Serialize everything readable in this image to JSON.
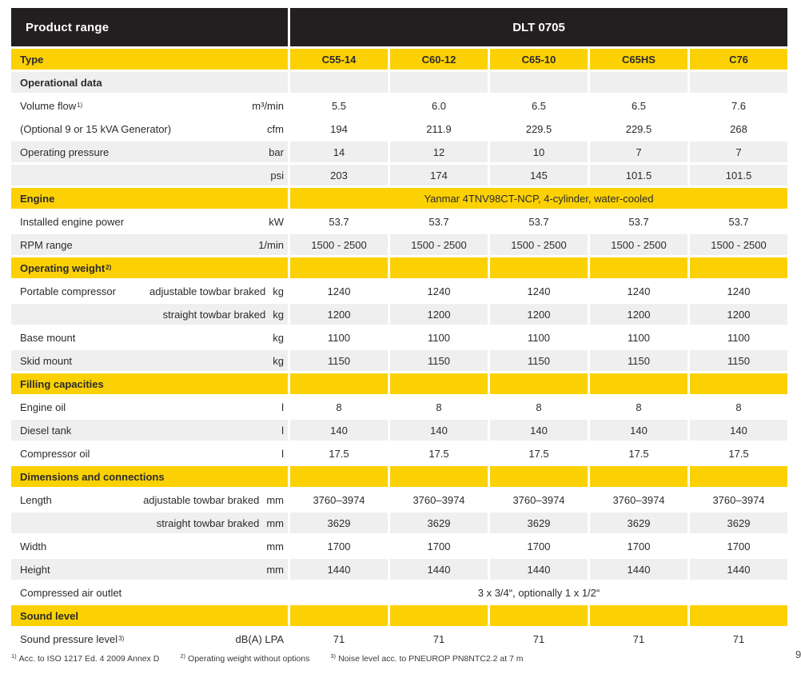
{
  "header": {
    "left": "Product range",
    "right": "DLT 0705"
  },
  "rows": [
    {
      "bg": "yellow",
      "bold": true,
      "label": "Type",
      "values": [
        "C55-14",
        "C60-12",
        "C65-10",
        "C65HS",
        "C76"
      ],
      "values_bold": true
    },
    {
      "bg": "gray",
      "bold": true,
      "label": "Operational data"
    },
    {
      "bg": "white",
      "label": "Volume flow",
      "sup": "1)",
      "unit": "m³/min",
      "values": [
        "5.5",
        "6.0",
        "6.5",
        "6.5",
        "7.6"
      ]
    },
    {
      "bg": "white",
      "label": "(Optional 9 or 15 kVA Generator)",
      "unit": "cfm",
      "values": [
        "194",
        "211.9",
        "229.5",
        "229.5",
        "268"
      ]
    },
    {
      "bg": "gray",
      "label": "Operating pressure",
      "unit": "bar",
      "values": [
        "14",
        "12",
        "10",
        "7",
        "7"
      ]
    },
    {
      "bg": "gray",
      "label": "",
      "unit": "psi",
      "values": [
        "203",
        "174",
        "145",
        "101.5",
        "101.5"
      ]
    },
    {
      "bg": "yellow",
      "bold": true,
      "label": "Engine",
      "span_value": "Yanmar 4TNV98CT-NCP, 4-cylinder, water-cooled"
    },
    {
      "bg": "white",
      "label": "Installed engine power",
      "unit": "kW",
      "values": [
        "53.7",
        "53.7",
        "53.7",
        "53.7",
        "53.7"
      ]
    },
    {
      "bg": "gray",
      "label": "RPM range",
      "unit": "1/min",
      "values": [
        "1500 - 2500",
        "1500 - 2500",
        "1500 - 2500",
        "1500 - 2500",
        "1500 - 2500"
      ]
    },
    {
      "bg": "yellow",
      "bold": true,
      "label": "Operating weight",
      "sup": "2)"
    },
    {
      "bg": "white",
      "label": "Portable compressor",
      "sublabel": "adjustable towbar braked",
      "unit": "kg",
      "values": [
        "1240",
        "1240",
        "1240",
        "1240",
        "1240"
      ]
    },
    {
      "bg": "gray",
      "label": "",
      "sublabel": "straight towbar braked",
      "unit": "kg",
      "values": [
        "1200",
        "1200",
        "1200",
        "1200",
        "1200"
      ]
    },
    {
      "bg": "white",
      "label": "Base mount",
      "unit": "kg",
      "values": [
        "1100",
        "1100",
        "1100",
        "1100",
        "1100"
      ]
    },
    {
      "bg": "gray",
      "label": "Skid mount",
      "unit": "kg",
      "values": [
        "1150",
        "1150",
        "1150",
        "1150",
        "1150"
      ]
    },
    {
      "bg": "yellow",
      "bold": true,
      "label": "Filling capacities"
    },
    {
      "bg": "white",
      "label": "Engine oil",
      "unit": "l",
      "values": [
        "8",
        "8",
        "8",
        "8",
        "8"
      ]
    },
    {
      "bg": "gray",
      "label": "Diesel tank",
      "unit": "l",
      "values": [
        "140",
        "140",
        "140",
        "140",
        "140"
      ]
    },
    {
      "bg": "white",
      "label": "Compressor oil",
      "unit": "l",
      "values": [
        "17.5",
        "17.5",
        "17.5",
        "17.5",
        "17.5"
      ]
    },
    {
      "bg": "yellow",
      "bold": true,
      "label": "Dimensions and connections"
    },
    {
      "bg": "white",
      "label": "Length",
      "sublabel": "adjustable towbar braked",
      "unit": "mm",
      "values": [
        "3760–3974",
        "3760–3974",
        "3760–3974",
        "3760–3974",
        "3760–3974"
      ]
    },
    {
      "bg": "gray",
      "label": "",
      "sublabel": "straight towbar braked",
      "unit": "mm",
      "values": [
        "3629",
        "3629",
        "3629",
        "3629",
        "3629"
      ]
    },
    {
      "bg": "white",
      "label": "Width",
      "unit": "mm",
      "values": [
        "1700",
        "1700",
        "1700",
        "1700",
        "1700"
      ]
    },
    {
      "bg": "gray",
      "label": "Height",
      "unit": "mm",
      "values": [
        "1440",
        "1440",
        "1440",
        "1440",
        "1440"
      ]
    },
    {
      "bg": "white",
      "label": "Compressed air outlet",
      "span_value": "3 x 3/4“, optionally 1 x 1/2“"
    },
    {
      "bg": "yellow",
      "bold": true,
      "label": "Sound level"
    },
    {
      "bg": "white",
      "label": "Sound pressure level",
      "sup": "3)",
      "unit": "dB(A) LPA",
      "values": [
        "71",
        "71",
        "71",
        "71",
        "71"
      ]
    }
  ],
  "footnotes": [
    {
      "sup": "1)",
      "text": "Acc. to ISO 1217 Ed. 4 2009 Annex D"
    },
    {
      "sup": "2)",
      "text": "Operating weight without options"
    },
    {
      "sup": "3)",
      "text": "Noise level acc. to PNEUROP PN8NTC2.2 at 7 m"
    }
  ],
  "page_number": "9",
  "colors": {
    "brand_yellow": "#fcd104",
    "header_black": "#231f20",
    "stripe_gray": "#f0efef"
  }
}
